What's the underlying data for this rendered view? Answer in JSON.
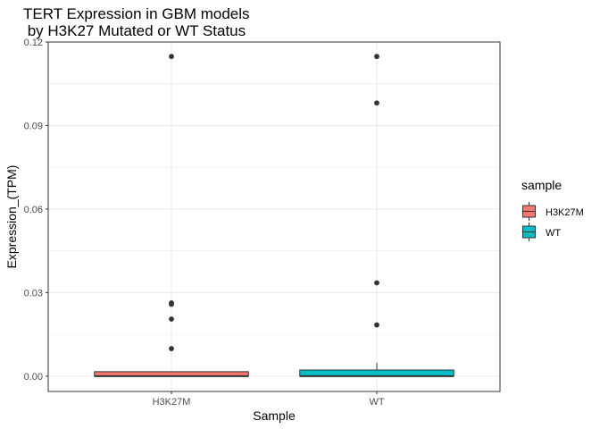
{
  "chart_data": {
    "type": "box",
    "title_lines": [
      "TERT Expression in GBM models",
      " by H3K27 Mutated or WT Status"
    ],
    "xlabel": "Sample",
    "ylabel": "Expression_(TPM)",
    "ylim": [
      -0.0055,
      0.12
    ],
    "yticks": [
      0.0,
      0.03,
      0.06,
      0.09,
      0.12
    ],
    "ytick_labels": [
      "0.00",
      "0.03",
      "0.06",
      "0.09",
      "0.12"
    ],
    "categories": [
      "H3K27M",
      "WT"
    ],
    "grid": true,
    "legend": {
      "title": "sample",
      "position": "right",
      "entries": [
        {
          "label": "H3K27M",
          "color": "#F8766D"
        },
        {
          "label": "WT",
          "color": "#00BFC4"
        }
      ]
    },
    "series": [
      {
        "category": "H3K27M",
        "color": "#F8766D",
        "min": 0.0,
        "q1": 0.0,
        "median": 0.0,
        "q3": 0.0016,
        "max": 0.0016,
        "outliers": [
          0.1148,
          0.0263,
          0.0258,
          0.0205,
          0.0099
        ]
      },
      {
        "category": "WT",
        "color": "#00BFC4",
        "min": 0.0,
        "q1": 0.0,
        "median": 0.0,
        "q3": 0.0022,
        "max": 0.0048,
        "outliers": [
          0.1148,
          0.0981,
          0.0335,
          0.0184
        ]
      }
    ]
  }
}
